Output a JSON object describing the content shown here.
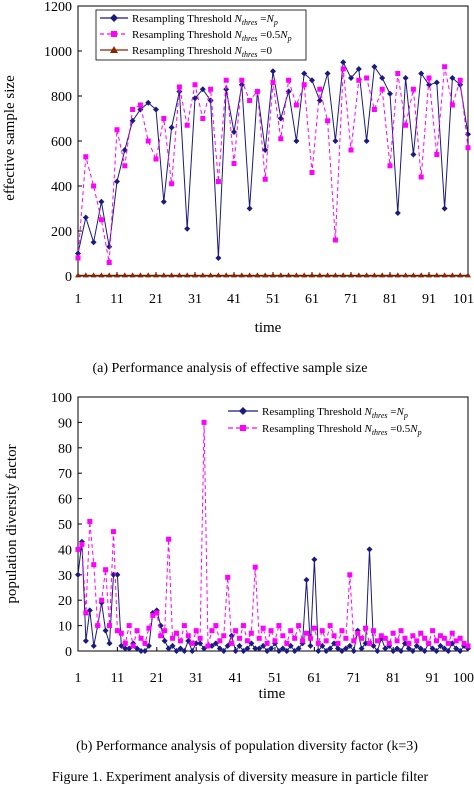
{
  "figure_caption": "Figure 1. Experiment analysis of diversity measure in particle filter",
  "chart_data": [
    {
      "type": "line",
      "caption": "(a) Performance analysis of effective sample size",
      "xlabel": "time",
      "ylabel": "effective sample size",
      "xlim": [
        1,
        101
      ],
      "ylim": [
        0,
        1200
      ],
      "x_ticks": [
        1,
        11,
        21,
        31,
        41,
        51,
        61,
        71,
        81,
        91,
        101
      ],
      "y_ticks": [
        0,
        200,
        400,
        600,
        800,
        1000,
        1200
      ],
      "grid": false,
      "legend_position": "top-left",
      "series": [
        {
          "legend_prefix": "Resampling Threshold ",
          "legend_math": "N_thres = N_p",
          "color": "#1a1a80",
          "line_style": "solid",
          "marker": "diamond",
          "x": [
            1,
            3,
            5,
            7,
            9,
            11,
            13,
            15,
            17,
            19,
            21,
            23,
            25,
            27,
            29,
            31,
            33,
            35,
            37,
            39,
            41,
            43,
            45,
            47,
            49,
            51,
            53,
            55,
            57,
            59,
            61,
            63,
            65,
            67,
            69,
            71,
            73,
            75,
            77,
            79,
            81,
            83,
            85,
            87,
            89,
            91,
            93,
            95,
            97,
            99,
            101
          ],
          "values": [
            100,
            260,
            150,
            330,
            130,
            420,
            560,
            690,
            740,
            770,
            740,
            330,
            660,
            820,
            210,
            790,
            830,
            780,
            80,
            830,
            640,
            850,
            300,
            820,
            560,
            910,
            700,
            820,
            600,
            900,
            870,
            780,
            900,
            600,
            950,
            880,
            920,
            600,
            930,
            880,
            810,
            280,
            880,
            540,
            900,
            850,
            860,
            300,
            880,
            850,
            630
          ]
        },
        {
          "legend_prefix": "Resampling Threshold ",
          "legend_math": "N_thres = 0.5N_p",
          "color": "#ff00ff",
          "line_style": "dashed",
          "marker": "square",
          "x": [
            1,
            3,
            5,
            7,
            9,
            11,
            13,
            15,
            17,
            19,
            21,
            23,
            25,
            27,
            29,
            31,
            33,
            35,
            37,
            39,
            41,
            43,
            45,
            47,
            49,
            51,
            53,
            55,
            57,
            59,
            61,
            63,
            65,
            67,
            69,
            71,
            73,
            75,
            77,
            79,
            81,
            83,
            85,
            87,
            89,
            91,
            93,
            95,
            97,
            99,
            101
          ],
          "values": [
            80,
            530,
            400,
            250,
            60,
            650,
            490,
            740,
            760,
            600,
            520,
            700,
            410,
            840,
            670,
            850,
            700,
            830,
            420,
            870,
            500,
            870,
            780,
            820,
            430,
            860,
            610,
            870,
            760,
            850,
            460,
            830,
            690,
            160,
            920,
            560,
            870,
            880,
            740,
            830,
            490,
            900,
            670,
            830,
            440,
            880,
            540,
            930,
            760,
            870,
            570
          ]
        },
        {
          "legend_prefix": "Resampling Threshold ",
          "legend_math": "N_thres = 0",
          "color": "#8b2500",
          "line_style": "solid",
          "marker": "triangle",
          "x": [
            1,
            3,
            5,
            7,
            9,
            11,
            13,
            15,
            17,
            19,
            21,
            23,
            25,
            27,
            29,
            31,
            33,
            35,
            37,
            39,
            41,
            43,
            45,
            47,
            49,
            51,
            53,
            55,
            57,
            59,
            61,
            63,
            65,
            67,
            69,
            71,
            73,
            75,
            77,
            79,
            81,
            83,
            85,
            87,
            89,
            91,
            93,
            95,
            97,
            99,
            101
          ],
          "values": [
            3,
            3,
            3,
            3,
            3,
            3,
            3,
            3,
            3,
            3,
            3,
            3,
            3,
            3,
            3,
            3,
            3,
            3,
            3,
            3,
            3,
            3,
            3,
            3,
            3,
            3,
            3,
            3,
            3,
            3,
            3,
            3,
            3,
            3,
            3,
            3,
            3,
            3,
            3,
            3,
            3,
            3,
            3,
            3,
            3,
            3,
            3,
            3,
            3,
            3,
            3
          ]
        }
      ]
    },
    {
      "type": "line",
      "caption": "(b) Performance analysis of population diversity factor (k=3)",
      "xlabel": "time",
      "ylabel": "population diversity factor",
      "xlim": [
        1,
        100
      ],
      "ylim": [
        0,
        100
      ],
      "x_ticks": [
        1,
        11,
        21,
        31,
        41,
        51,
        61,
        71,
        81,
        91,
        100
      ],
      "y_ticks": [
        0,
        10,
        20,
        30,
        40,
        50,
        60,
        70,
        80,
        90,
        100
      ],
      "grid": false,
      "legend_position": "top-right",
      "series": [
        {
          "legend_prefix": "Resampling Threshold ",
          "legend_math": "N_thres = N_p",
          "color": "#1a1a80",
          "line_style": "solid",
          "marker": "diamond",
          "x": [
            1,
            2,
            3,
            4,
            5,
            6,
            7,
            8,
            9,
            10,
            11,
            12,
            13,
            14,
            15,
            16,
            17,
            18,
            19,
            20,
            21,
            22,
            23,
            24,
            25,
            26,
            27,
            28,
            29,
            30,
            31,
            32,
            33,
            34,
            35,
            36,
            37,
            38,
            39,
            40,
            41,
            42,
            43,
            44,
            45,
            46,
            47,
            48,
            49,
            50,
            51,
            52,
            53,
            54,
            55,
            56,
            57,
            58,
            59,
            60,
            61,
            62,
            63,
            64,
            65,
            66,
            67,
            68,
            69,
            70,
            71,
            72,
            73,
            74,
            75,
            76,
            77,
            78,
            79,
            80,
            81,
            82,
            83,
            84,
            85,
            86,
            87,
            88,
            89,
            90,
            91,
            92,
            93,
            94,
            95,
            96,
            97,
            98,
            99,
            100
          ],
          "values": [
            30,
            43,
            4,
            16,
            2,
            10,
            19,
            8,
            3,
            30,
            30,
            2,
            1,
            1,
            3,
            1,
            0,
            0,
            2,
            15,
            16,
            10,
            4,
            1,
            2,
            0,
            1,
            0,
            4,
            0,
            3,
            3,
            1,
            2,
            2,
            3,
            1,
            0,
            2,
            6,
            0,
            2,
            0,
            1,
            3,
            1,
            1,
            2,
            0,
            1,
            3,
            0,
            1,
            0,
            2,
            0,
            1,
            3,
            28,
            2,
            36,
            0,
            2,
            0,
            1,
            3,
            1,
            0,
            1,
            2,
            0,
            8,
            1,
            3,
            40,
            2,
            0,
            5,
            1,
            2,
            0,
            1,
            0,
            3,
            1,
            0,
            2,
            1,
            0,
            3,
            1,
            0,
            2,
            1,
            0,
            3,
            1,
            0,
            2,
            1
          ]
        },
        {
          "legend_prefix": "Resampling Threshold ",
          "legend_math": "N_thres = 0.5N_p",
          "color": "#ff00ff",
          "line_style": "dashed",
          "marker": "square",
          "x": [
            1,
            2,
            3,
            4,
            5,
            6,
            7,
            8,
            9,
            10,
            11,
            12,
            13,
            14,
            15,
            16,
            17,
            18,
            19,
            20,
            21,
            22,
            23,
            24,
            25,
            26,
            27,
            28,
            29,
            30,
            31,
            32,
            33,
            34,
            35,
            36,
            37,
            38,
            39,
            40,
            41,
            42,
            43,
            44,
            45,
            46,
            47,
            48,
            49,
            50,
            51,
            52,
            53,
            54,
            55,
            56,
            57,
            58,
            59,
            60,
            61,
            62,
            63,
            64,
            65,
            66,
            67,
            68,
            69,
            70,
            71,
            72,
            73,
            74,
            75,
            76,
            77,
            78,
            79,
            80,
            81,
            82,
            83,
            84,
            85,
            86,
            87,
            88,
            89,
            90,
            91,
            92,
            93,
            94,
            95,
            96,
            97,
            98,
            99,
            100
          ],
          "values": [
            40,
            42,
            15,
            51,
            34,
            10,
            20,
            32,
            10,
            47,
            8,
            7,
            3,
            10,
            2,
            8,
            5,
            3,
            9,
            14,
            15,
            6,
            8,
            44,
            5,
            7,
            4,
            10,
            6,
            3,
            8,
            5,
            90,
            2,
            8,
            10,
            4,
            6,
            29,
            3,
            8,
            5,
            10,
            4,
            7,
            33,
            5,
            9,
            3,
            8,
            4,
            10,
            6,
            3,
            8,
            5,
            10,
            4,
            7,
            5,
            9,
            3,
            8,
            4,
            10,
            6,
            3,
            8,
            5,
            30,
            4,
            7,
            5,
            9,
            3,
            8,
            4,
            6,
            5,
            3,
            7,
            4,
            8,
            5,
            3,
            6,
            4,
            7,
            5,
            3,
            8,
            4,
            6,
            5,
            3,
            7,
            4,
            5,
            3,
            2
          ]
        }
      ]
    }
  ]
}
